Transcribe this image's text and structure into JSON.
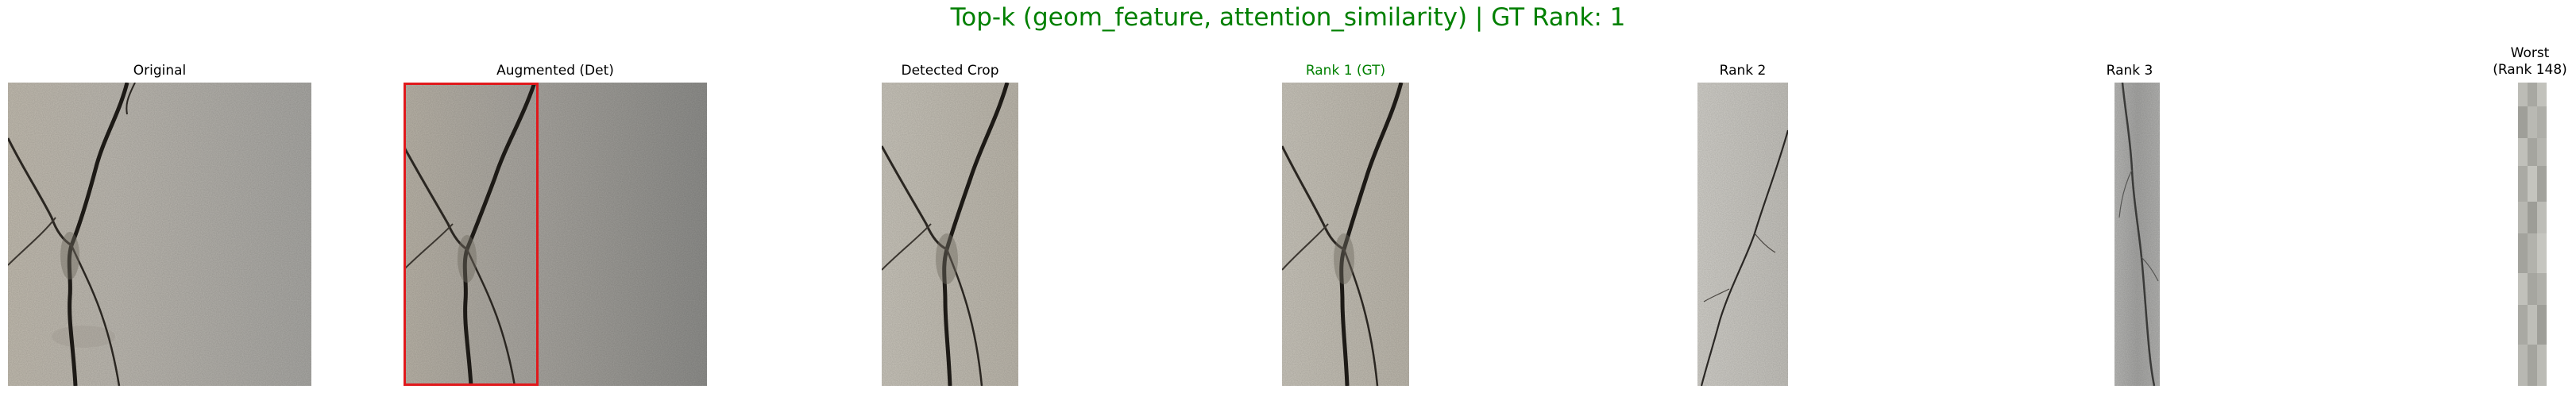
{
  "figure": {
    "title": "Top-k (geom_feature, attention_similarity) | GT Rank: 1",
    "title_color": "#008000",
    "gt_color": "#008000",
    "box_color": "#e0191c"
  },
  "panels": [
    {
      "label": "Original",
      "image": "crack-wall-photo"
    },
    {
      "label": "Augmented (Det)",
      "image": "crack-wall-photo-augmented-with-detection-box"
    },
    {
      "label": "Detected Crop",
      "image": "crack-crop-photo"
    },
    {
      "label": "Rank 1 (GT)",
      "image": "crack-crop-photo-ground-truth"
    },
    {
      "label": "Rank 2",
      "image": "thin-crack-photo"
    },
    {
      "label": "Rank 3",
      "image": "narrow-crack-strip-photo"
    },
    {
      "label": "Worst\n(Rank 148)",
      "image": "blurred-texture-strip"
    }
  ]
}
